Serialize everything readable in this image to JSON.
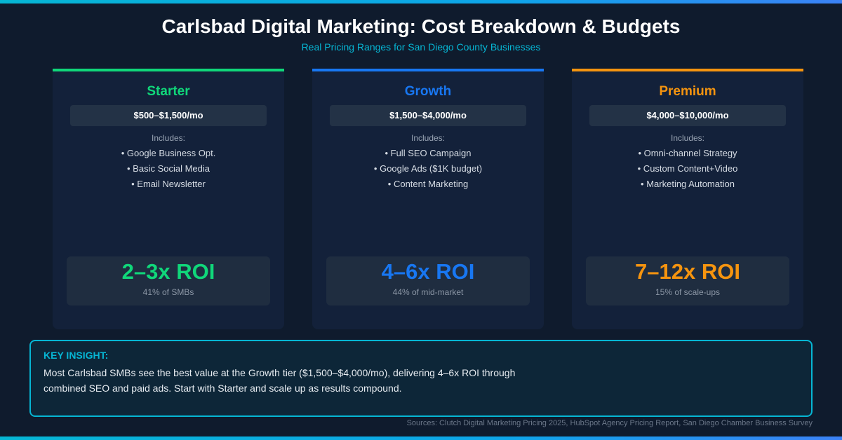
{
  "header": {
    "title": "Carlsbad Digital Marketing: Cost Breakdown & Budgets",
    "subtitle": "Real Pricing Ranges for San Diego County Businesses"
  },
  "tiers": [
    {
      "name": "Starter",
      "color": "#10d77a",
      "price": "$500–$1,500/mo",
      "includes_label": "Includes:",
      "items": [
        "• Google Business Opt.",
        "• Basic Social Media",
        "• Email Newsletter"
      ],
      "roi": "2–3x ROI",
      "share": "41% of SMBs"
    },
    {
      "name": "Growth",
      "color": "#1877f2",
      "price": "$1,500–$4,000/mo",
      "includes_label": "Includes:",
      "items": [
        "• Full SEO Campaign",
        "• Google Ads ($1K budget)",
        "• Content Marketing"
      ],
      "roi": "4–6x ROI",
      "share": "44% of mid-market"
    },
    {
      "name": "Premium",
      "color": "#f5940f",
      "price": "$4,000–$10,000/mo",
      "includes_label": "Includes:",
      "items": [
        "• Omni-channel Strategy",
        "• Custom Content+Video",
        "• Marketing Automation"
      ],
      "roi": "7–12x ROI",
      "share": "15% of scale-ups"
    }
  ],
  "insight": {
    "heading": "KEY INSIGHT:",
    "text": "Most Carlsbad SMBs see the best value at the Growth tier ($1,500–$4,000/mo), delivering 4–6x ROI through combined SEO and paid ads. Start with Starter and scale up as results compound."
  },
  "sources": "Sources: Clutch Digital Marketing Pricing 2025, HubSpot Agency Pricing Report, San Diego Chamber Business Survey"
}
